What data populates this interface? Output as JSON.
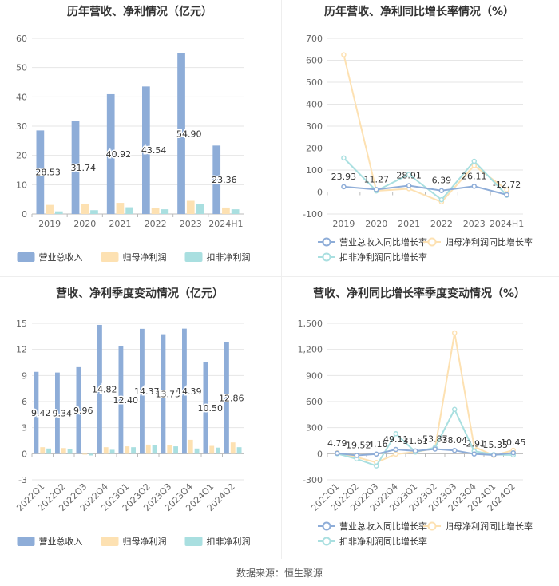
{
  "colors": {
    "revenue": "#8eadd8",
    "netprofit": "#fde1b2",
    "deducted": "#a9dfe0",
    "grid": "#e6e6e6",
    "axis": "#999999",
    "label": "#333333"
  },
  "source": "数据来源：恒生聚源",
  "chart_data": [
    {
      "id": "c1",
      "type": "bar",
      "title": "历年营收、净利情况（亿元）",
      "categories": [
        "2019",
        "2020",
        "2021",
        "2022",
        "2023",
        "2024H1"
      ],
      "yticks": [
        0,
        10,
        20,
        30,
        40,
        50,
        60
      ],
      "ylim": [
        0,
        60
      ],
      "series": [
        {
          "name": "营业总收入",
          "color": "revenue",
          "values": [
            28.53,
            31.74,
            40.92,
            43.54,
            54.9,
            23.36
          ],
          "labels": [
            "28.53",
            "31.74",
            "40.92",
            "43.54",
            "54.90",
            "23.36"
          ]
        },
        {
          "name": "归母净利润",
          "color": "netprofit",
          "values": [
            3.1,
            3.3,
            3.8,
            2.1,
            4.5,
            2.2
          ]
        },
        {
          "name": "扣非净利润",
          "color": "deducted",
          "values": [
            0.9,
            1.3,
            2.3,
            1.6,
            3.4,
            1.6
          ]
        }
      ],
      "legend": "bottom"
    },
    {
      "id": "c2",
      "type": "line",
      "title": "历年营收、净利同比增长率情况（%）",
      "categories": [
        "2019",
        "2020",
        "2021",
        "2022",
        "2023",
        "2024H1"
      ],
      "yticks": [
        -100,
        0,
        100,
        200,
        300,
        400,
        500,
        600,
        700
      ],
      "ylim": [
        -100,
        700
      ],
      "series": [
        {
          "name": "营业总收入同比增长率",
          "color": "revenue",
          "values": [
            23.93,
            11.27,
            28.91,
            6.39,
            26.11,
            -12.72
          ],
          "labels": [
            "23.93",
            "11.27",
            "28.91",
            "6.39",
            "26.11",
            "-12.72"
          ]
        },
        {
          "name": "归母净利润同比增长率",
          "color": "netprofit",
          "values": [
            625,
            5,
            15,
            -45,
            120,
            10
          ]
        },
        {
          "name": "扣非净利润同比增长率",
          "color": "deducted",
          "values": [
            155,
            5,
            80,
            -35,
            140,
            -15
          ]
        }
      ],
      "legend": "bottom"
    },
    {
      "id": "c3",
      "type": "bar",
      "title": "营收、净利季度变动情况（亿元）",
      "categories": [
        "2022Q1",
        "2022Q2",
        "2022Q3",
        "2022Q4",
        "2023Q1",
        "2023Q2",
        "2023Q3",
        "2023Q4",
        "2024Q1",
        "2024Q2"
      ],
      "yticks": [
        -3,
        0,
        3,
        6,
        9,
        12,
        15
      ],
      "ylim": [
        -3,
        15
      ],
      "series": [
        {
          "name": "营业总收入",
          "color": "revenue",
          "values": [
            9.42,
            9.34,
            9.96,
            14.82,
            12.4,
            14.37,
            13.75,
            14.39,
            10.5,
            12.86
          ],
          "labels": [
            "9.42",
            "9.34",
            "9.96",
            "14.82",
            "12.40",
            "14.37",
            "13.75",
            "14.39",
            "10.50",
            "12.86"
          ]
        },
        {
          "name": "归母净利润",
          "color": "netprofit",
          "values": [
            0.75,
            0.65,
            -0.1,
            0.75,
            0.85,
            1.05,
            1.0,
            1.6,
            0.9,
            1.3
          ]
        },
        {
          "name": "扣非净利润",
          "color": "deducted",
          "values": [
            0.6,
            0.5,
            -0.2,
            0.45,
            0.75,
            0.95,
            0.85,
            0.6,
            0.7,
            0.75
          ]
        }
      ],
      "legend": "bottom"
    },
    {
      "id": "c4",
      "type": "line",
      "title": "营收、净利同比增长率季度变动情况（%）",
      "categories": [
        "2022Q1",
        "2022Q2",
        "2022Q3",
        "2022Q4",
        "2023Q1",
        "2023Q2",
        "2023Q3",
        "2023Q4",
        "2024Q1",
        "2024Q2"
      ],
      "yticks": [
        -300,
        0,
        300,
        600,
        900,
        1200,
        1500
      ],
      "yticklabels": [
        "-300",
        "0",
        "300",
        "600",
        "900",
        "1,200",
        "1,500"
      ],
      "ylim": [
        -300,
        1500
      ],
      "series": [
        {
          "name": "营业总收入同比增长率",
          "color": "revenue",
          "values": [
            4.79,
            -19.52,
            -4.16,
            49.11,
            31.61,
            53.87,
            38.04,
            -2.91,
            -15.35,
            10.45
          ],
          "labels": [
            "4.79",
            "-19.52",
            "-4.16",
            "49.11",
            "31.61",
            "53.87",
            "38.04",
            "-2.91",
            "-15.35",
            "10.45"
          ]
        },
        {
          "name": "归母净利润同比增长率",
          "color": "netprofit",
          "values": [
            10,
            -40,
            -100,
            -5,
            20,
            60,
            1390,
            80,
            -20,
            40
          ]
        },
        {
          "name": "扣非净利润同比增长率",
          "color": "deducted",
          "values": [
            0,
            -60,
            -140,
            230,
            20,
            70,
            510,
            30,
            -10,
            -15
          ]
        }
      ],
      "legend": "bottom"
    }
  ]
}
